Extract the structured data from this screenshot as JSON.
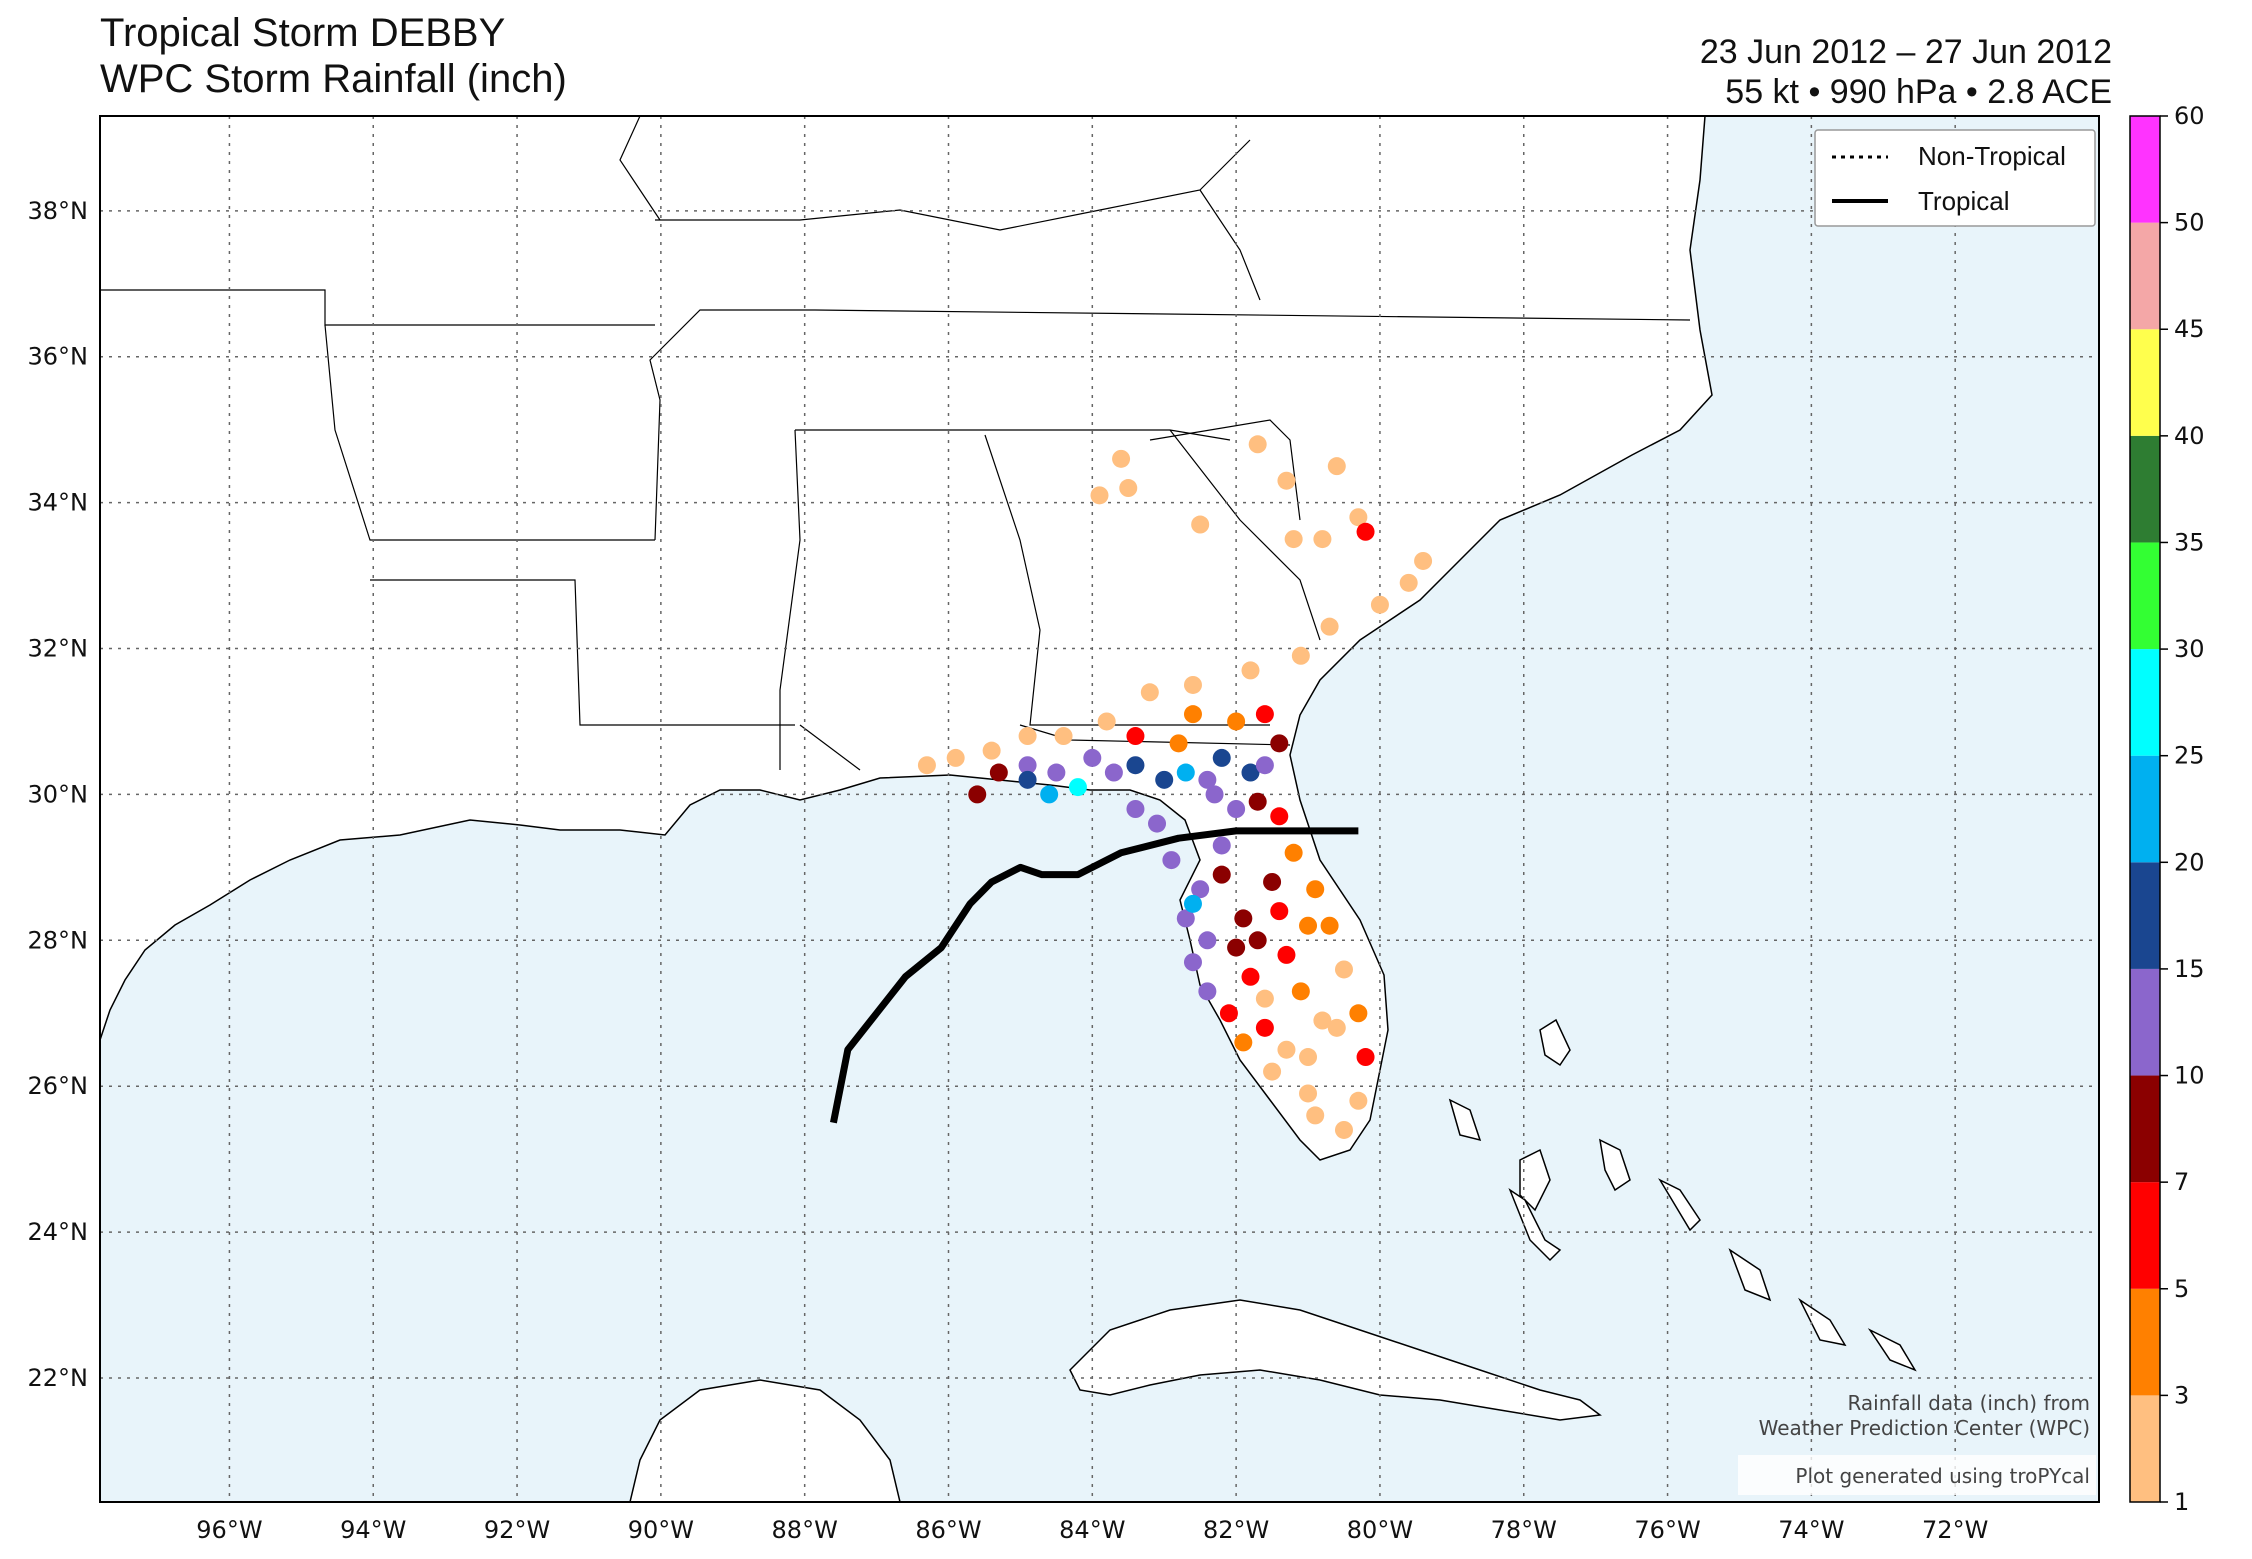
{
  "header": {
    "storm_title": "Tropical Storm DEBBY",
    "product_title": "WPC Storm Rainfall (inch)",
    "date_range": "23 Jun 2012 – 27 Jun 2012",
    "stats": "55 kt • 990 hPa • 2.8 ACE"
  },
  "legend": {
    "non_tropical": "Non-Tropical",
    "tropical": "Tropical"
  },
  "credits": {
    "line1": "Rainfall data (inch) from",
    "line2": "Weather Prediction Center (WPC)",
    "line3": "Plot generated using troPYcal"
  },
  "axes": {
    "lon_labels": [
      "96°W",
      "94°W",
      "92°W",
      "90°W",
      "88°W",
      "86°W",
      "84°W",
      "82°W",
      "80°W",
      "78°W",
      "76°W",
      "74°W",
      "72°W"
    ],
    "lat_labels": [
      "38°N",
      "36°N",
      "34°N",
      "32°N",
      "30°N",
      "28°N",
      "26°N",
      "24°N",
      "22°N"
    ]
  },
  "colorbar": {
    "levels": [
      "1",
      "3",
      "5",
      "7",
      "10",
      "15",
      "20",
      "25",
      "30",
      "35",
      "40",
      "45",
      "50",
      "60"
    ],
    "colors": [
      "#ffbf80",
      "#ff8000",
      "#ff0000",
      "#8b0000",
      "#8b66cc",
      "#1a4690",
      "#00b0f0",
      "#00ffff",
      "#33ff33",
      "#2e7d32",
      "#ffff4d",
      "#f4a7a7",
      "#ff33ff"
    ]
  },
  "colors": {
    "ocean": "#e8f4fa",
    "land": "#ffffff",
    "track": "#000000"
  },
  "chart_data": {
    "type": "scatter",
    "title": "WPC Storm Rainfall (inch)",
    "xlabel": "",
    "ylabel": "",
    "xlim": [
      -97.8,
      -70.0
    ],
    "ylim": [
      20.3,
      39.3
    ],
    "track": [
      [
        -87.6,
        25.5
      ],
      [
        -87.4,
        26.5
      ],
      [
        -87.0,
        27.0
      ],
      [
        -86.6,
        27.5
      ],
      [
        -86.1,
        27.9
      ],
      [
        -85.7,
        28.5
      ],
      [
        -85.4,
        28.8
      ],
      [
        -85.0,
        29.0
      ],
      [
        -84.7,
        28.9
      ],
      [
        -84.2,
        28.9
      ],
      [
        -83.6,
        29.2
      ],
      [
        -82.8,
        29.4
      ],
      [
        -82.0,
        29.5
      ],
      [
        -80.3,
        29.5
      ]
    ],
    "rain_points": [
      [
        -83.6,
        34.6,
        1.5
      ],
      [
        -83.9,
        34.1,
        2
      ],
      [
        -83.5,
        34.2,
        1.6
      ],
      [
        -82.5,
        33.7,
        1.4
      ],
      [
        -81.7,
        34.8,
        2
      ],
      [
        -81.3,
        34.3,
        1.8
      ],
      [
        -80.6,
        34.5,
        1.3
      ],
      [
        -80.3,
        33.8,
        2.5
      ],
      [
        -80.8,
        33.5,
        1.9
      ],
      [
        -81.2,
        33.5,
        2.2
      ],
      [
        -80.2,
        33.6,
        6
      ],
      [
        -79.4,
        33.2,
        1.5
      ],
      [
        -79.6,
        32.9,
        2
      ],
      [
        -80.0,
        32.6,
        2.4
      ],
      [
        -80.7,
        32.3,
        1.7
      ],
      [
        -81.1,
        31.9,
        2.1
      ],
      [
        -81.8,
        31.7,
        1.5
      ],
      [
        -82.6,
        31.5,
        2.2
      ],
      [
        -83.2,
        31.4,
        1.4
      ],
      [
        -83.8,
        31.0,
        1.6
      ],
      [
        -84.4,
        30.8,
        2.4
      ],
      [
        -84.9,
        30.8,
        1.3
      ],
      [
        -85.4,
        30.6,
        2.6
      ],
      [
        -85.9,
        30.5,
        1.8
      ],
      [
        -86.3,
        30.4,
        2.3
      ],
      [
        -85.6,
        30.0,
        8.5
      ],
      [
        -85.3,
        30.3,
        7.5
      ],
      [
        -84.9,
        30.4,
        12
      ],
      [
        -84.5,
        30.3,
        13
      ],
      [
        -84.2,
        30.1,
        26
      ],
      [
        -84.6,
        30.0,
        22
      ],
      [
        -84.9,
        30.2,
        18
      ],
      [
        -84.0,
        30.5,
        12
      ],
      [
        -83.7,
        30.3,
        14
      ],
      [
        -83.4,
        30.4,
        16
      ],
      [
        -83.0,
        30.2,
        17
      ],
      [
        -82.7,
        30.3,
        21
      ],
      [
        -82.4,
        30.2,
        13
      ],
      [
        -82.2,
        30.5,
        16
      ],
      [
        -81.8,
        30.3,
        17
      ],
      [
        -81.6,
        30.4,
        12
      ],
      [
        -81.4,
        30.7,
        8
      ],
      [
        -81.6,
        31.1,
        6
      ],
      [
        -82.0,
        31.0,
        4
      ],
      [
        -82.8,
        30.7,
        4
      ],
      [
        -83.4,
        30.8,
        5
      ],
      [
        -82.6,
        31.1,
        3
      ],
      [
        -82.3,
        30.0,
        13
      ],
      [
        -82.0,
        29.8,
        11
      ],
      [
        -81.7,
        29.9,
        7
      ],
      [
        -81.4,
        29.7,
        6
      ],
      [
        -81.2,
        29.2,
        4
      ],
      [
        -80.9,
        28.7,
        4
      ],
      [
        -80.7,
        28.2,
        3
      ],
      [
        -80.5,
        27.6,
        2.5
      ],
      [
        -80.3,
        27.0,
        3.5
      ],
      [
        -80.2,
        26.4,
        5.5
      ],
      [
        -80.3,
        25.8,
        2
      ],
      [
        -80.5,
        25.4,
        1.6
      ],
      [
        -81.0,
        25.9,
        2
      ],
      [
        -81.3,
        26.5,
        2
      ],
      [
        -80.8,
        26.9,
        1.5
      ],
      [
        -81.6,
        26.8,
        5
      ],
      [
        -81.9,
        26.6,
        3
      ],
      [
        -82.1,
        27.0,
        6
      ],
      [
        -82.4,
        27.3,
        12
      ],
      [
        -82.6,
        27.7,
        13
      ],
      [
        -82.4,
        28.0,
        12
      ],
      [
        -82.7,
        28.3,
        14
      ],
      [
        -82.5,
        28.7,
        13
      ],
      [
        -82.2,
        28.9,
        8
      ],
      [
        -81.9,
        28.3,
        8
      ],
      [
        -81.7,
        28.0,
        9
      ],
      [
        -81.4,
        28.4,
        6
      ],
      [
        -81.3,
        27.8,
        5
      ],
      [
        -81.1,
        27.3,
        3
      ],
      [
        -81.8,
        27.5,
        5
      ],
      [
        -82.0,
        27.9,
        8
      ],
      [
        -82.2,
        29.3,
        12
      ],
      [
        -82.9,
        29.1,
        12
      ],
      [
        -83.1,
        29.6,
        11
      ],
      [
        -83.4,
        29.8,
        13
      ],
      [
        -82.6,
        28.5,
        21
      ],
      [
        -81.5,
        28.8,
        8
      ],
      [
        -81.0,
        28.2,
        4
      ],
      [
        -81.6,
        27.2,
        2
      ],
      [
        -81.5,
        26.2,
        2
      ],
      [
        -81.0,
        26.4,
        1.5
      ],
      [
        -80.6,
        26.8,
        1.8
      ],
      [
        -80.9,
        25.6,
        1.7
      ]
    ]
  }
}
